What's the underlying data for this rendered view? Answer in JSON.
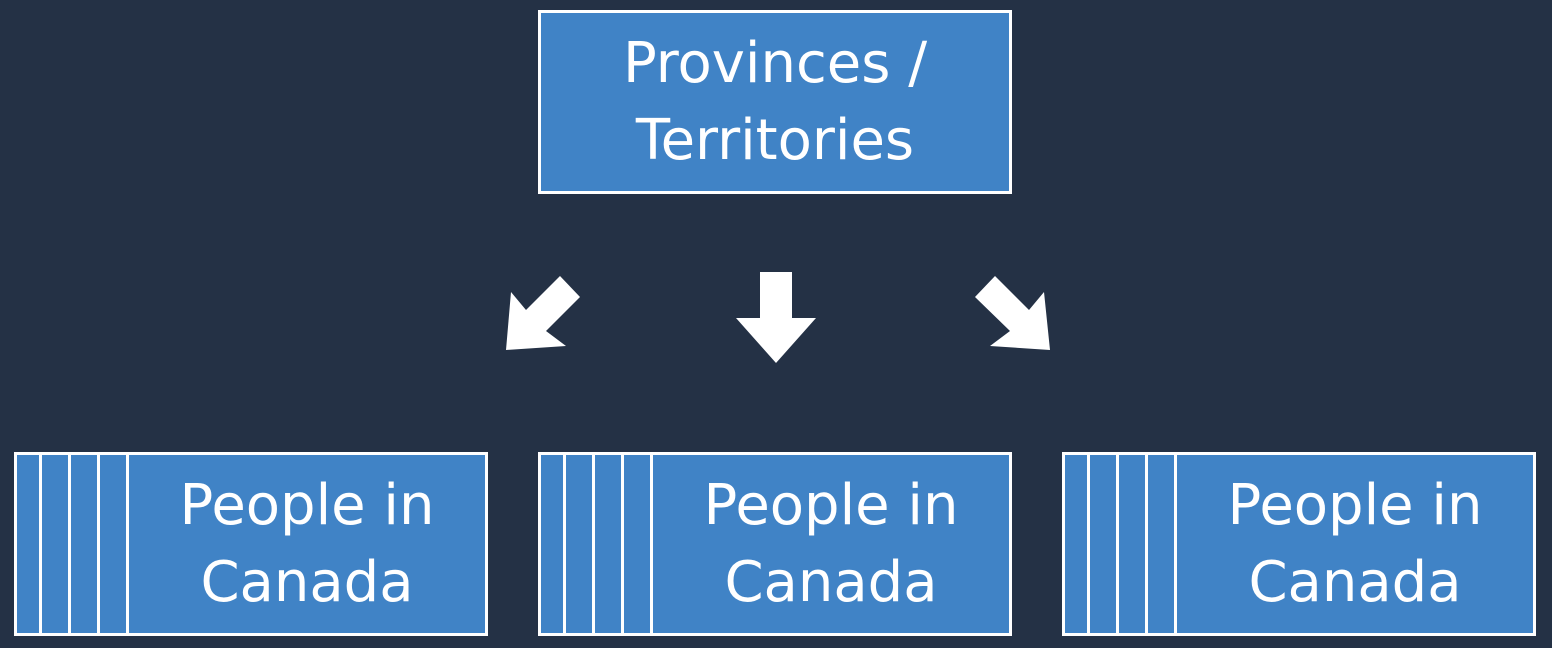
{
  "diagram": {
    "root": {
      "label": "Provinces /\nTerritories"
    },
    "children": [
      {
        "label": "People in\nCanada"
      },
      {
        "label": "People in\nCanada"
      },
      {
        "label": "People in\nCanada"
      }
    ],
    "colors": {
      "background": "#243145",
      "box_fill": "#4083c6",
      "border": "#ffffff",
      "arrow": "#ffffff",
      "text": "#ffffff"
    }
  }
}
